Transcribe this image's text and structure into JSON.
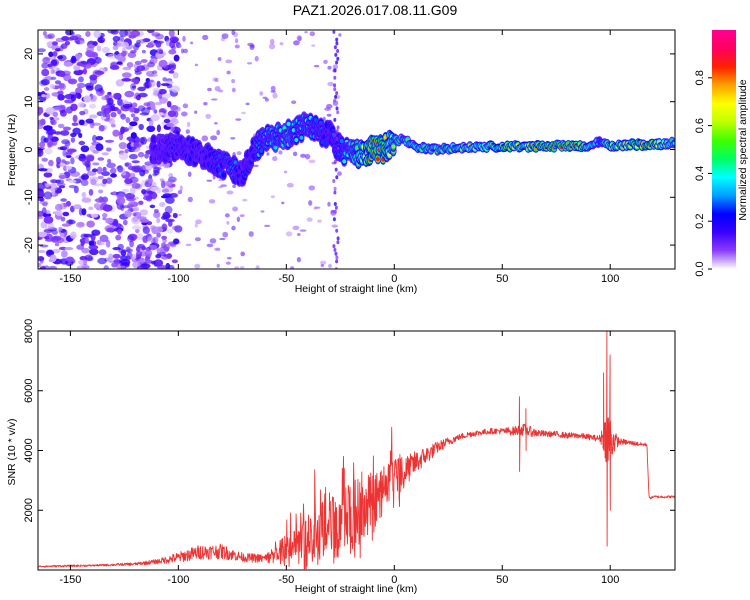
{
  "title": "PAZ1.2026.017.08.11.G09",
  "chart_data": [
    {
      "type": "heatmap",
      "xlabel": "Height of straight line (km)",
      "ylabel": "Frequency (Hz)",
      "xlim": [
        -165,
        130
      ],
      "ylim": [
        -25,
        25
      ],
      "xticks": [
        -150,
        -100,
        -50,
        0,
        50,
        100
      ],
      "xtick_labels": [
        "-150",
        "-100",
        "-50",
        "0",
        "50",
        "100"
      ],
      "yticks": [
        -20,
        -10,
        0,
        10,
        20
      ],
      "ytick_labels": [
        "-20",
        "-10",
        "0",
        "10",
        "20"
      ],
      "colorbar": {
        "label": "Normalized spectral amplitude",
        "range": [
          0,
          1
        ],
        "ticks": [
          0.0,
          0.2,
          0.4,
          0.6,
          0.8
        ],
        "tick_labels": [
          "0.0",
          "0.2",
          "0.4",
          "0.6",
          "0.8"
        ],
        "colormap": [
          "#ffffff",
          "#8a3cff",
          "#3a00ff",
          "#0000ff",
          "#00a0ff",
          "#00ffff",
          "#00ff60",
          "#40ff00",
          "#c0ff00",
          "#ffff00",
          "#ffa000",
          "#ff2000",
          "#ff0060",
          "#ff0090"
        ]
      },
      "ridge": {
        "name": "frequency ridge",
        "x": [
          -110,
          -100,
          -90,
          -80,
          -75,
          -70,
          -65,
          -60,
          -55,
          -50,
          -45,
          -40,
          -35,
          -30,
          -25,
          -20,
          -15,
          -10,
          -5,
          0,
          5,
          10,
          20,
          30,
          40,
          50,
          60,
          70,
          80,
          90,
          95,
          100,
          110,
          120,
          130
        ],
        "y": [
          0,
          0.5,
          -1,
          -3,
          -4,
          -5,
          0,
          2,
          2.5,
          3,
          4,
          5,
          4,
          3,
          0,
          -1,
          -1,
          0,
          0,
          2,
          2,
          0.5,
          0,
          0.3,
          0.5,
          0.6,
          0.6,
          0.7,
          0.7,
          0.8,
          1.5,
          0.8,
          1,
          1,
          1.5
        ],
        "amplitude": [
          0.15,
          0.2,
          0.2,
          0.25,
          0.3,
          0.2,
          0.25,
          0.35,
          0.35,
          0.4,
          0.35,
          0.35,
          0.3,
          0.2,
          0.3,
          0.4,
          0.6,
          0.85,
          0.85,
          0.5,
          0.45,
          0.55,
          0.5,
          0.55,
          0.6,
          0.75,
          0.7,
          0.8,
          0.85,
          0.7,
          0.3,
          0.7,
          0.75,
          0.8,
          0.4
        ]
      },
      "scatter_region": {
        "name": "diffuse low-amplitude noise",
        "x_range": [
          -165,
          -100
        ],
        "y_range": [
          -25,
          25
        ],
        "amplitude_range": [
          0.02,
          0.18
        ]
      }
    },
    {
      "type": "line",
      "xlabel": "Height of straight line (km)",
      "ylabel": "SNR (10 * v/v)",
      "xlim": [
        -165,
        130
      ],
      "ylim": [
        0,
        8000
      ],
      "xticks": [
        -150,
        -100,
        -50,
        0,
        50,
        100
      ],
      "xtick_labels": [
        "-150",
        "-100",
        "-50",
        "0",
        "50",
        "100"
      ],
      "yticks": [
        2000,
        4000,
        6000,
        8000
      ],
      "ytick_labels": [
        "2000",
        "4000",
        "6000",
        "8000"
      ],
      "series": [
        {
          "name": "SNR",
          "color": "#ee3333",
          "envelope_x": [
            -165,
            -140,
            -120,
            -110,
            -100,
            -90,
            -80,
            -70,
            -60,
            -55,
            -50,
            -45,
            -40,
            -35,
            -30,
            -25,
            -20,
            -15,
            -10,
            -5,
            0,
            5,
            10,
            15,
            20,
            25,
            30,
            35,
            40,
            45,
            50,
            55,
            60,
            65,
            70,
            75,
            80,
            85,
            90,
            95,
            97,
            99,
            101,
            103,
            105,
            110,
            115,
            117,
            118,
            120,
            125,
            130
          ],
          "envelope_y": [
            120,
            150,
            200,
            280,
            420,
            600,
            620,
            420,
            380,
            500,
            700,
            850,
            1000,
            1200,
            1350,
            1600,
            1800,
            2000,
            2300,
            2600,
            3000,
            3300,
            3600,
            3850,
            4100,
            4300,
            4450,
            4550,
            4600,
            4650,
            4650,
            4650,
            4700,
            4600,
            4550,
            4550,
            4500,
            4500,
            4450,
            4400,
            4500,
            4400,
            4350,
            4300,
            4300,
            4250,
            4200,
            4200,
            2400,
            2450,
            2450,
            2450
          ],
          "noise_amplitude": [
            30,
            30,
            50,
            80,
            180,
            250,
            250,
            150,
            150,
            300,
            600,
            700,
            900,
            1000,
            1100,
            1200,
            1300,
            1200,
            1100,
            900,
            700,
            500,
            400,
            300,
            200,
            150,
            100,
            100,
            100,
            100,
            100,
            150,
            200,
            150,
            100,
            100,
            100,
            100,
            100,
            100,
            500,
            1200,
            600,
            200,
            100,
            80,
            60,
            60,
            40,
            40,
            40,
            40
          ],
          "spikes": [
            {
              "x": 58,
              "min": 3300,
              "max": 5800
            },
            {
              "x": 61,
              "min": 4000,
              "max": 5400
            },
            {
              "x": 97,
              "min": 4000,
              "max": 6600
            },
            {
              "x": 98.5,
              "min": 800,
              "max": 8000
            },
            {
              "x": 100,
              "min": 2000,
              "max": 7200
            }
          ]
        }
      ]
    }
  ]
}
